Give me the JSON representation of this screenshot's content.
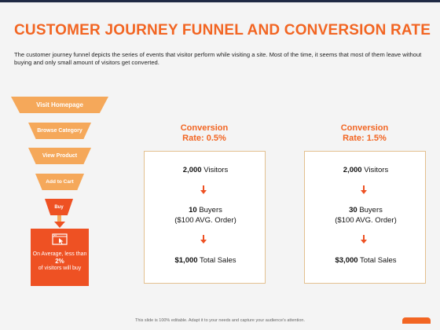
{
  "slide": {
    "title": "CUSTOMER JOURNEY FUNNEL AND CONVERSION RATE",
    "description": "The customer journey funnel depicts the series of events that visitor perform while visiting a site. Most of the time, it seems that most of them leave without buying and only small amount of visitors get converted.",
    "footer": "This slide is 100% editable. Adapt it to your needs and capture your audience's attention."
  },
  "funnel": {
    "steps": [
      "Visit Homepage",
      "Browse Category",
      "View Product",
      "Add to Cart",
      "Buy"
    ],
    "summary_prefix": "On Average, less than",
    "summary_percent": "2%",
    "summary_suffix": "of visitors will buy"
  },
  "panels": [
    {
      "title_line1": "Conversion",
      "title_line2": "Rate: 0.5%",
      "visitors_value": "2,000",
      "visitors_label": "Visitors",
      "buyers_value": "10",
      "buyers_label": "Buyers",
      "order_text": "($100 AVG. Order)",
      "sales_value": "$1,000",
      "sales_label": "Total Sales"
    },
    {
      "title_line1": "Conversion",
      "title_line2": "Rate: 1.5%",
      "visitors_value": "2,000",
      "visitors_label": "Visitors",
      "buyers_value": "30",
      "buyers_label": "Buyers",
      "order_text": "($100 AVG. Order)",
      "sales_value": "$3,000",
      "sales_label": "Total Sales"
    }
  ],
  "colors": {
    "accent": "#f26522",
    "funnel_light": "#f5a85a",
    "funnel_dark": "#ee5123"
  }
}
